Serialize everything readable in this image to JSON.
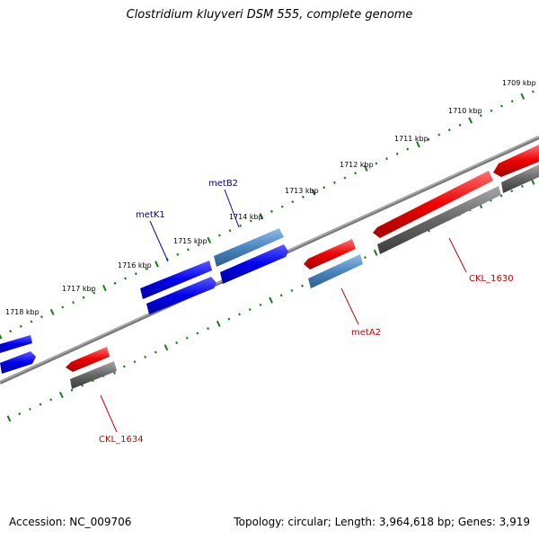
{
  "title": "Clostridium kluyveri DSM 555, complete genome",
  "footer": {
    "accession": "Accession: NC_009706",
    "summary": "Topology: circular; Length: 3,964,618 bp; Genes: 3,919"
  },
  "ticks": [
    "1709 kbp",
    "1710 kbp",
    "1711 kbp",
    "1712 kbp",
    "1713 kbp",
    "1714 kbp",
    "1715 kbp",
    "1716 kbp",
    "1717 kbp",
    "1718 kbp"
  ],
  "gene_labels": {
    "metB2": "metB2",
    "metK1": "metK1",
    "CKL_1630": "CKL_1630",
    "metA2": "metA2",
    "CKL_1634": "CKL_1634"
  },
  "colors": {
    "gene_blue": "#0000ee",
    "gene_steelblue": "#4a86c0",
    "gene_red": "#ee0000",
    "gene_gray": "#666666",
    "backbone": "#808080",
    "tick_green": "#1a7a1a",
    "label_blue": "#00008b",
    "label_red": "#cc0000"
  }
}
